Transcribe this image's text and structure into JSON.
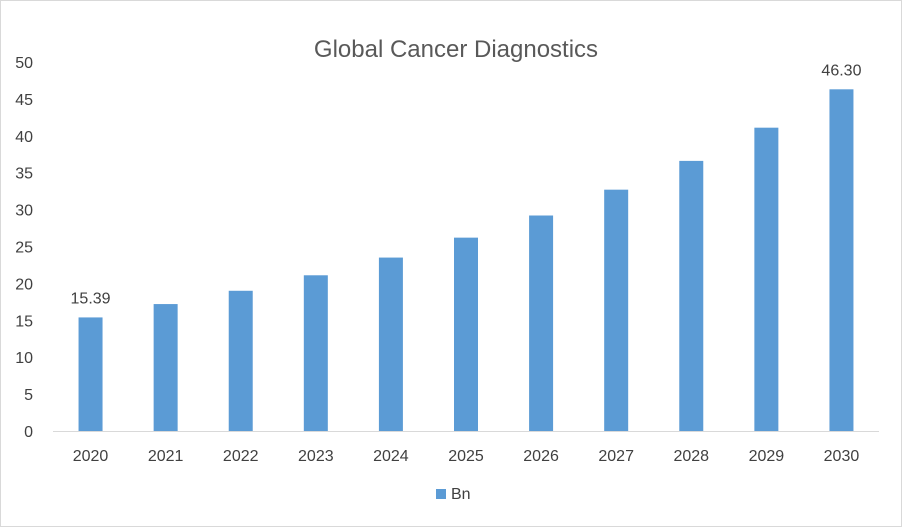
{
  "chart_data": {
    "type": "bar",
    "title": "Global Cancer Diagnostics",
    "xlabel": "",
    "ylabel": "",
    "categories": [
      "2020",
      "2021",
      "2022",
      "2023",
      "2024",
      "2025",
      "2026",
      "2027",
      "2028",
      "2029",
      "2030"
    ],
    "series": [
      {
        "name": "Bn",
        "values": [
          15.39,
          17.2,
          19.0,
          21.1,
          23.5,
          26.2,
          29.2,
          32.7,
          36.6,
          41.1,
          46.3
        ],
        "color": "#5b9bd5"
      }
    ],
    "data_labels": [
      {
        "category": "2020",
        "text": "15.39"
      },
      {
        "category": "2030",
        "text": "46.30"
      }
    ],
    "ylim": [
      0,
      50
    ],
    "yticks": [
      0,
      5,
      10,
      15,
      20,
      25,
      30,
      35,
      40,
      45,
      50
    ],
    "grid": false,
    "legend_position": "bottom",
    "axis_color": "#d9d9d9"
  }
}
